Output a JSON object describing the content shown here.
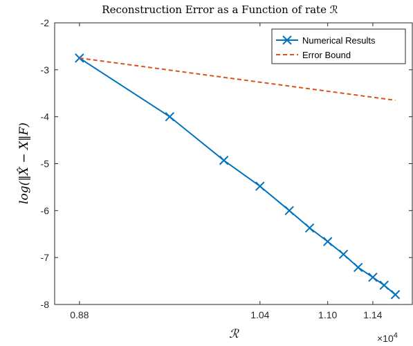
{
  "chart_data": {
    "type": "line",
    "title": "Reconstruction Error as a Function of rate ℛ",
    "xlabel": "ℛ",
    "ylabel": "log(‖X̂ − X‖F)",
    "x_exponent_label": "×10",
    "x_exponent_power": "4",
    "xlim": [
      0.858,
      1.175
    ],
    "ylim": [
      -8,
      -2
    ],
    "x_ticks": [
      0.88,
      1.04,
      1.1,
      1.14
    ],
    "x_tick_labels": [
      "0.88",
      "1.04",
      "1.10",
      "1.14"
    ],
    "y_ticks": [
      -2,
      -3,
      -4,
      -5,
      -6,
      -7,
      -8
    ],
    "y_tick_labels": [
      "-2",
      "-3",
      "-4",
      "-5",
      "-6",
      "-7",
      "-8"
    ],
    "grid": false,
    "legend_position": "top-right",
    "series": [
      {
        "name": "Numerical Results",
        "color": "#0072BD",
        "style": "solid",
        "marker": "x",
        "x": [
          0.88,
          0.96,
          1.008,
          1.04,
          1.066,
          1.084,
          1.1,
          1.114,
          1.127,
          1.14,
          1.15,
          1.16
        ],
        "y": [
          -2.75,
          -4.0,
          -4.93,
          -5.48,
          -6.0,
          -6.37,
          -6.66,
          -6.93,
          -7.21,
          -7.42,
          -7.59,
          -7.79
        ]
      },
      {
        "name": "Error Bound",
        "color": "#D95319",
        "style": "dashed",
        "marker": "none",
        "x": [
          0.88,
          1.16
        ],
        "y": [
          -2.75,
          -3.65
        ]
      }
    ]
  }
}
